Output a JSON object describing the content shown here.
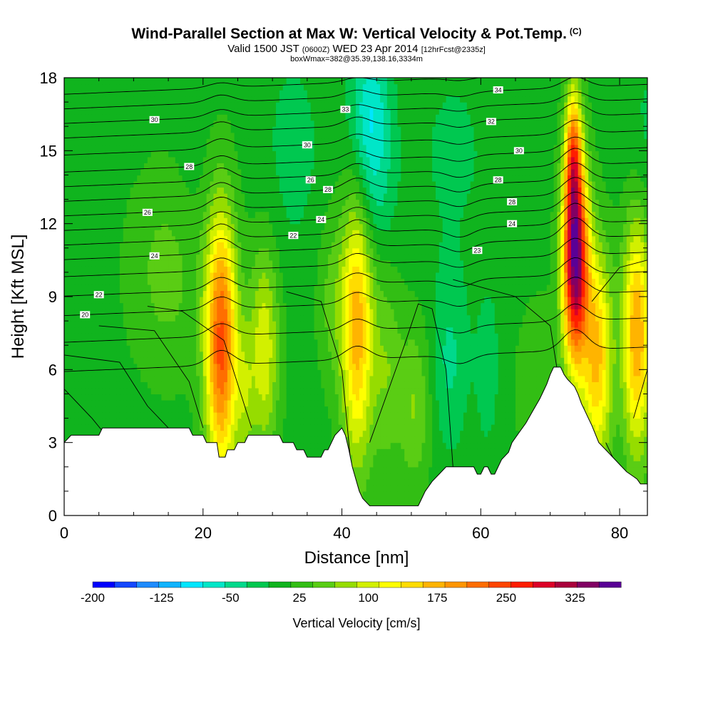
{
  "header": {
    "title": "Wind-Parallel Section at Max W: Vertical Velocity & Pot.Temp.",
    "copyright": "(C)",
    "valid_prefix": "Valid 1500 JST",
    "valid_utc": "(0600Z)",
    "valid_date": "WED 23 Apr 2014",
    "forecast_info": "[12hrFcst@2335z]",
    "box_info": "boxWmax=382@35.39,138.16,3334m"
  },
  "chart_data": {
    "type": "heatmap",
    "xlabel": "Distance [nm]",
    "ylabel": "Height [Kft MSL]",
    "colorbar_label": "Vertical Velocity [cm/s]",
    "xlim": [
      0,
      84
    ],
    "ylim": [
      0,
      18
    ],
    "x_ticks": [
      "0",
      "20",
      "40",
      "60",
      "80"
    ],
    "y_ticks": [
      "0",
      "3",
      "6",
      "9",
      "12",
      "15",
      "18"
    ],
    "colorbar_ticks": [
      "-200",
      "-125",
      "-50",
      "25",
      "100",
      "175",
      "250",
      "325"
    ],
    "colorbar_range": [
      -200,
      375
    ],
    "colorbar_step": 25,
    "colorbar_colors": [
      "#0000ff",
      "#1448ff",
      "#1e8cff",
      "#10b4ff",
      "#00e6ff",
      "#00e6c8",
      "#00d98c",
      "#00c850",
      "#10b41e",
      "#32be14",
      "#5acd14",
      "#96dc00",
      "#d2f000",
      "#ffff00",
      "#ffdc00",
      "#ffb400",
      "#ff9600",
      "#ff6e00",
      "#ff4600",
      "#ff1e00",
      "#dc0028",
      "#aa003c",
      "#820064",
      "#5a0096"
    ],
    "background_velocity": 15,
    "velocity_cells": [
      {
        "x": 22.6,
        "y": 7.0,
        "sx": 1.6,
        "sy": 3.8,
        "w": 240
      },
      {
        "x": 28.8,
        "y": 6.8,
        "sx": 1.5,
        "sy": 3.0,
        "w": 105
      },
      {
        "x": 26.0,
        "y": 5.0,
        "sx": 1.0,
        "sy": 2.0,
        "w": 55
      },
      {
        "x": 42.2,
        "y": 7.8,
        "sx": 1.6,
        "sy": 4.0,
        "w": 175
      },
      {
        "x": 46.5,
        "y": 6.0,
        "sx": 1.5,
        "sy": 3.0,
        "w": 55
      },
      {
        "x": 50.5,
        "y": 4.5,
        "sx": 1.6,
        "sy": 2.5,
        "w": 60
      },
      {
        "x": 73.6,
        "y": 10.5,
        "sx": 1.3,
        "sy": 3.0,
        "w": 360
      },
      {
        "x": 73.3,
        "y": 15.0,
        "sx": 0.8,
        "sy": 2.0,
        "w": 160
      },
      {
        "x": 76.8,
        "y": 6.5,
        "sx": 1.5,
        "sy": 3.2,
        "w": 165
      },
      {
        "x": 82.5,
        "y": 7.5,
        "sx": 1.5,
        "sy": 3.5,
        "w": 185
      },
      {
        "x": 44.0,
        "y": 16.5,
        "sx": 2.0,
        "sy": 2.2,
        "w": -90
      },
      {
        "x": 44.5,
        "y": 13.0,
        "sx": 2.2,
        "sy": 2.0,
        "w": -40
      },
      {
        "x": 33.0,
        "y": 15.0,
        "sx": 3.0,
        "sy": 3.0,
        "w": -25
      },
      {
        "x": 55.5,
        "y": 6.5,
        "sx": 1.8,
        "sy": 2.6,
        "w": -45
      },
      {
        "x": 61.0,
        "y": 6.0,
        "sx": 1.4,
        "sy": 2.6,
        "w": -25
      },
      {
        "x": 18.5,
        "y": 13.0,
        "sx": 2.0,
        "sy": 3.0,
        "w": -10
      },
      {
        "x": 56.0,
        "y": 15.0,
        "sx": 4.0,
        "sy": 3.0,
        "w": -20
      },
      {
        "x": 65.0,
        "y": 13.0,
        "sx": 2.5,
        "sy": 3.0,
        "w": -10
      },
      {
        "x": 84.0,
        "y": 15.0,
        "sx": 2.5,
        "sy": 3.0,
        "w": -25
      },
      {
        "x": 15.0,
        "y": 10.0,
        "sx": 4.0,
        "sy": 3.0,
        "w": 45
      },
      {
        "x": 38.5,
        "y": 9.0,
        "sx": 1.5,
        "sy": 2.5,
        "w": 40
      },
      {
        "x": 68.0,
        "y": 5.5,
        "sx": 2.0,
        "sy": 2.5,
        "w": 35
      }
    ],
    "terrain": [
      [
        0,
        3.0
      ],
      [
        1,
        3.3
      ],
      [
        5,
        3.3
      ],
      [
        5.5,
        3.6
      ],
      [
        18,
        3.6
      ],
      [
        18.5,
        3.3
      ],
      [
        20,
        3.3
      ],
      [
        20.5,
        3.0
      ],
      [
        22,
        3.0
      ],
      [
        22.3,
        2.4
      ],
      [
        23.2,
        2.4
      ],
      [
        23.5,
        2.7
      ],
      [
        24.5,
        2.7
      ],
      [
        25,
        3.0
      ],
      [
        26,
        3.0
      ],
      [
        26.5,
        3.3
      ],
      [
        31,
        3.3
      ],
      [
        31.5,
        3.0
      ],
      [
        33,
        3.0
      ],
      [
        33.5,
        2.7
      ],
      [
        34.5,
        2.7
      ],
      [
        35,
        2.4
      ],
      [
        37,
        2.4
      ],
      [
        37.5,
        2.7
      ],
      [
        38,
        2.7
      ],
      [
        38.5,
        3.0
      ],
      [
        39,
        3.3
      ],
      [
        40,
        3.6
      ],
      [
        40.5,
        3.3
      ],
      [
        41,
        2.7
      ],
      [
        41.5,
        2.0
      ],
      [
        42,
        1.5
      ],
      [
        42.5,
        1.0
      ],
      [
        43,
        0.7
      ],
      [
        44,
        0.4
      ],
      [
        51,
        0.4
      ],
      [
        51.5,
        0.7
      ],
      [
        52,
        1.0
      ],
      [
        53,
        1.4
      ],
      [
        54,
        1.7
      ],
      [
        55,
        2.0
      ],
      [
        59,
        2.0
      ],
      [
        59.5,
        1.7
      ],
      [
        60,
        1.7
      ],
      [
        60.5,
        2.0
      ],
      [
        61,
        2.0
      ],
      [
        61.5,
        1.7
      ],
      [
        62,
        1.7
      ],
      [
        62.5,
        2.0
      ],
      [
        63,
        2.3
      ],
      [
        64,
        2.6
      ],
      [
        64.5,
        3.0
      ],
      [
        65.5,
        3.4
      ],
      [
        66.5,
        3.8
      ],
      [
        67.5,
        4.3
      ],
      [
        68.5,
        4.8
      ],
      [
        69.5,
        5.4
      ],
      [
        70,
        5.8
      ],
      [
        70.5,
        6.1
      ],
      [
        71.5,
        6.1
      ],
      [
        72,
        5.8
      ],
      [
        72.5,
        5.6
      ],
      [
        73.5,
        5.3
      ],
      [
        74,
        5.0
      ],
      [
        74.5,
        4.6
      ],
      [
        75,
        4.3
      ],
      [
        75.5,
        4.0
      ],
      [
        76,
        3.7
      ],
      [
        77,
        3.0
      ],
      [
        78,
        2.7
      ],
      [
        79,
        2.4
      ],
      [
        80,
        2.1
      ],
      [
        81,
        1.8
      ],
      [
        82,
        1.6
      ],
      [
        82.5,
        1.5
      ],
      [
        83,
        1.3
      ],
      [
        84,
        1.3
      ]
    ],
    "theta_contours": [
      {
        "base": 6.4,
        "amp": 0.6,
        "label": "",
        "lx": 0
      },
      {
        "base": 7.6,
        "amp": 0.5,
        "label": "",
        "lx": 0
      },
      {
        "base": 8.7,
        "amp": 0.5,
        "label": "20",
        "lx": 3
      },
      {
        "base": 9.5,
        "amp": 0.5,
        "label": "22",
        "lx": 5
      },
      {
        "base": 10.3,
        "amp": 0.5,
        "label": "",
        "lx": 0
      },
      {
        "base": 11.0,
        "amp": 0.6,
        "label": "24",
        "lx": 13
      },
      {
        "base": 11.6,
        "amp": 0.6,
        "label": "22",
        "lx": 33
      },
      {
        "base": 12.2,
        "amp": 0.5,
        "label": "24",
        "lx": 37
      },
      {
        "base": 12.8,
        "amp": 0.5,
        "label": "26",
        "lx": 12
      },
      {
        "base": 13.4,
        "amp": 0.5,
        "label": "28",
        "lx": 38
      },
      {
        "base": 14.0,
        "amp": 0.5,
        "label": "",
        "lx": 0
      },
      {
        "base": 14.6,
        "amp": 0.4,
        "label": "28",
        "lx": 18
      },
      {
        "base": 15.3,
        "amp": 0.4,
        "label": "30",
        "lx": 35
      },
      {
        "base": 16.0,
        "amp": 0.4,
        "label": "",
        "lx": 0
      },
      {
        "base": 16.6,
        "amp": 0.3,
        "label": "30",
        "lx": 13
      },
      {
        "base": 17.2,
        "amp": 0.3,
        "label": "",
        "lx": 0
      },
      {
        "base": 17.8,
        "amp": 0.2,
        "label": "",
        "lx": 0
      }
    ],
    "extra_labels": [
      {
        "text": "33",
        "x": 40.5,
        "y": 16.7
      },
      {
        "text": "26",
        "x": 35.5,
        "y": 13.8
      },
      {
        "text": "34",
        "x": 62.5,
        "y": 17.5
      },
      {
        "text": "32",
        "x": 61.5,
        "y": 16.2
      },
      {
        "text": "30",
        "x": 65.5,
        "y": 15.0
      },
      {
        "text": "28",
        "x": 62.5,
        "y": 13.8
      },
      {
        "text": "28",
        "x": 64.5,
        "y": 12.9
      },
      {
        "text": "24",
        "x": 64.5,
        "y": 12.0
      },
      {
        "text": "23",
        "x": 59.5,
        "y": 10.9
      }
    ]
  }
}
